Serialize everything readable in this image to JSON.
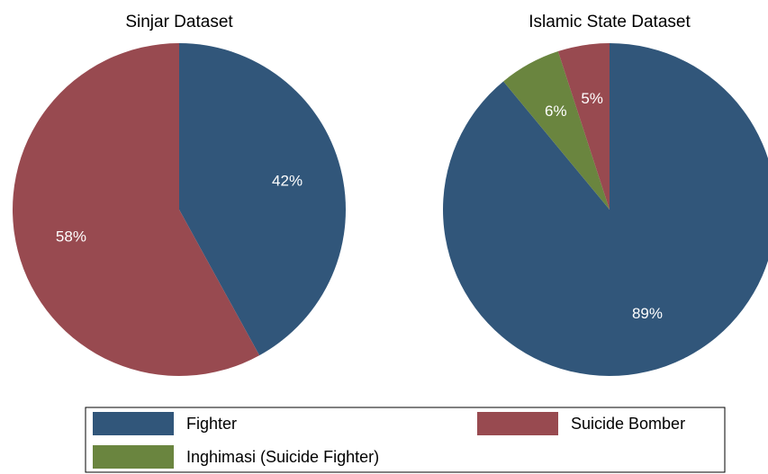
{
  "chart_data": [
    {
      "type": "pie",
      "title": "Sinjar Dataset",
      "categories": [
        "Fighter",
        "Suicide Bomber"
      ],
      "values": [
        42,
        58
      ],
      "value_labels": [
        "42%",
        "58%"
      ],
      "colors": [
        "#31567a",
        "#984a50"
      ]
    },
    {
      "type": "pie",
      "title": "Islamic State Dataset",
      "categories": [
        "Fighter",
        "Inghimasi (Suicide Fighter)",
        "Suicide Bomber"
      ],
      "values": [
        89,
        6,
        5
      ],
      "value_labels": [
        "89%",
        "6%",
        "5%"
      ],
      "colors": [
        "#31567a",
        "#6a853f",
        "#984a50"
      ],
      "legend": "bottom"
    }
  ]
}
